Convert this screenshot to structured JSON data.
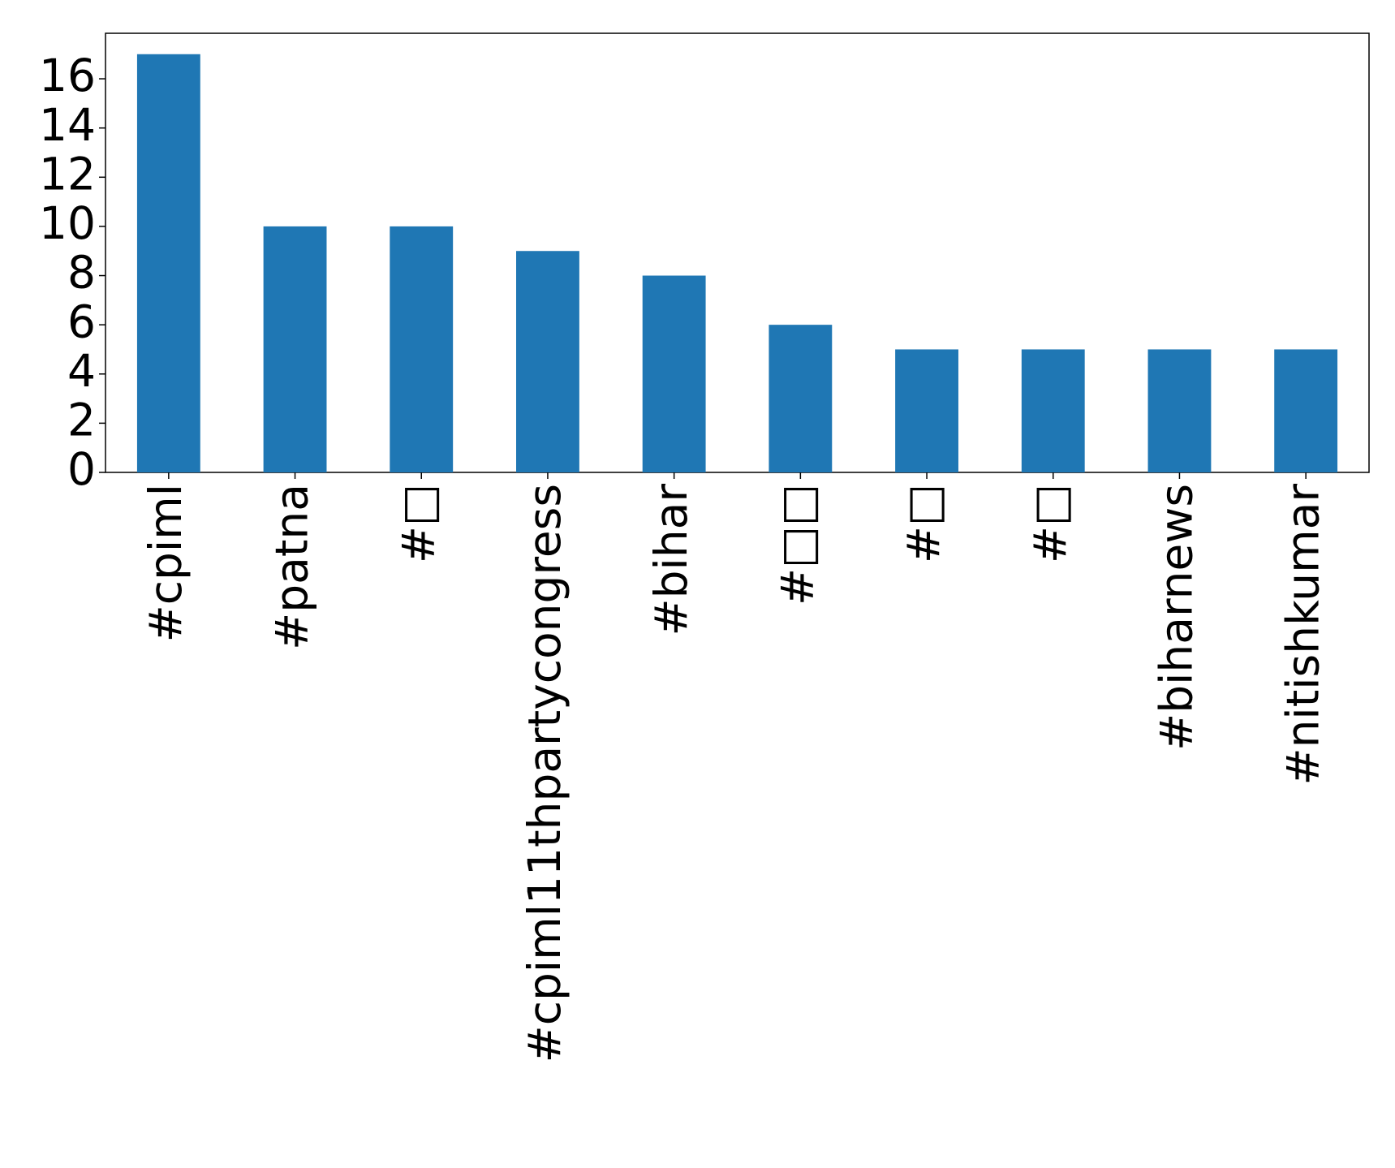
{
  "chart_data": {
    "type": "bar",
    "categories": [
      "#cpiml",
      "#patna",
      "#□",
      "#cpiml11thpartycongress",
      "#bihar",
      "#□□",
      "#□",
      "#□",
      "#biharnews",
      "#nitishkumar"
    ],
    "values": [
      17,
      10,
      10,
      9,
      8,
      6,
      5,
      5,
      5,
      5
    ],
    "color": "#1f77b4",
    "ylim": [
      0,
      17.85
    ],
    "yticks": [
      0,
      2,
      4,
      6,
      8,
      10,
      12,
      14,
      16
    ],
    "grid": false
  }
}
